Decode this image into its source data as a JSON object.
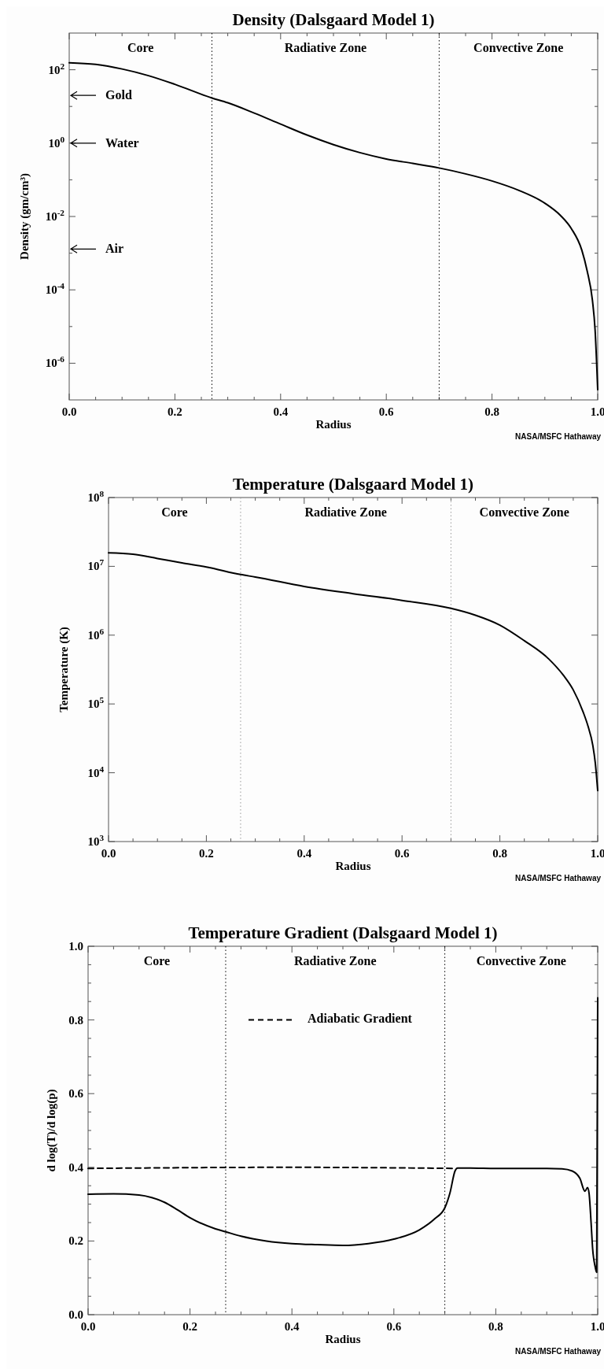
{
  "chart_data": [
    {
      "type": "line",
      "title": "Density (Dalsgaard Model 1)",
      "xlabel": "Radius",
      "ylabel": "Density (gm/cm³)",
      "log": "y",
      "xlim": [
        0,
        1
      ],
      "xticks": [
        {
          "value": 0,
          "label": "0.0"
        },
        {
          "value": 0.05,
          "label": null
        },
        {
          "value": 0.1,
          "label": null
        },
        {
          "value": 0.15,
          "label": null
        },
        {
          "value": 0.2,
          "label": "0.2"
        },
        {
          "value": 0.25,
          "label": null
        },
        {
          "value": 0.3,
          "label": null
        },
        {
          "value": 0.35,
          "label": null
        },
        {
          "value": 0.4,
          "label": "0.4"
        },
        {
          "value": 0.45,
          "label": null
        },
        {
          "value": 0.5,
          "label": null
        },
        {
          "value": 0.55,
          "label": null
        },
        {
          "value": 0.6,
          "label": "0.6"
        },
        {
          "value": 0.65,
          "label": null
        },
        {
          "value": 0.7,
          "label": null
        },
        {
          "value": 0.75,
          "label": null
        },
        {
          "value": 0.8,
          "label": "0.8"
        },
        {
          "value": 0.85,
          "label": null
        },
        {
          "value": 0.9,
          "label": null
        },
        {
          "value": 0.95,
          "label": null
        },
        {
          "value": 1,
          "label": "1.0"
        }
      ],
      "ylim": [
        1e-07,
        1000
      ],
      "yticks": [
        {
          "value": 1e-06,
          "label": "10$^{-6}$"
        },
        {
          "value": 1e-05,
          "label": null
        },
        {
          "value": 0.0001,
          "label": "10$^{-4}$"
        },
        {
          "value": 0.001,
          "label": null
        },
        {
          "value": 0.01,
          "label": "10$^{-2}$"
        },
        {
          "value": 0.1,
          "label": null
        },
        {
          "value": 1,
          "label": "10$^{0}$"
        },
        {
          "value": 10,
          "label": null
        },
        {
          "value": 100,
          "label": "10$^{2}$"
        }
      ],
      "series": [
        {
          "color": "#000000",
          "x": [
            0,
            0.05,
            0.1,
            0.15,
            0.2,
            0.27,
            0.3,
            0.35,
            0.4,
            0.45,
            0.5,
            0.55,
            0.6,
            0.65,
            0.7,
            0.75,
            0.8,
            0.85,
            0.9,
            0.93,
            0.95,
            0.97,
            0.98,
            0.99,
            0.995,
            1.0
          ],
          "values": [
            155,
            140,
            105,
            69,
            40,
            17,
            12.6,
            6.6,
            3.3,
            1.66,
            0.91,
            0.55,
            0.37,
            0.28,
            0.21,
            0.145,
            0.093,
            0.052,
            0.023,
            0.0105,
            0.0047,
            0.0012,
            0.00033,
            5.2e-05,
            8.3e-06,
            1.9e-07
          ]
        }
      ],
      "ref_lines": [
        {
          "axis": "x",
          "value": 0.27,
          "color": "#000000",
          "line_style": "dotted"
        },
        {
          "axis": "x",
          "value": 0.7,
          "color": "#000000",
          "line_style": "dotted"
        },
        {
          "axis": "y",
          "value": 20,
          "label": "Gold",
          "color": "#000000"
        },
        {
          "axis": "y",
          "value": 1,
          "label": "Water",
          "color": "#000000"
        },
        {
          "axis": "y",
          "value": 0.0013,
          "label": "Air",
          "color": "#000000"
        }
      ],
      "annotations": [
        "Core",
        "Radiative Zone",
        "Convective Zone",
        "NASA/MSFC Hathaway"
      ]
    },
    {
      "type": "line",
      "title": "Temperature (Dalsgaard Model 1)",
      "xlabel": "Radius",
      "ylabel": "Temperature (K)",
      "log": "y",
      "xlim": [
        0,
        1
      ],
      "xticks": [
        {
          "value": 0,
          "label": "0.0"
        },
        {
          "value": 0.05,
          "label": null
        },
        {
          "value": 0.1,
          "label": null
        },
        {
          "value": 0.15,
          "label": null
        },
        {
          "value": 0.2,
          "label": "0.2"
        },
        {
          "value": 0.25,
          "label": null
        },
        {
          "value": 0.3,
          "label": null
        },
        {
          "value": 0.35,
          "label": null
        },
        {
          "value": 0.4,
          "label": "0.4"
        },
        {
          "value": 0.45,
          "label": null
        },
        {
          "value": 0.5,
          "label": null
        },
        {
          "value": 0.55,
          "label": null
        },
        {
          "value": 0.6,
          "label": "0.6"
        },
        {
          "value": 0.65,
          "label": null
        },
        {
          "value": 0.7,
          "label": null
        },
        {
          "value": 0.75,
          "label": null
        },
        {
          "value": 0.8,
          "label": "0.8"
        },
        {
          "value": 0.85,
          "label": null
        },
        {
          "value": 0.9,
          "label": null
        },
        {
          "value": 0.95,
          "label": null
        },
        {
          "value": 1,
          "label": "1.0"
        }
      ],
      "ylim": [
        1000,
        100000000
      ],
      "yticks": [
        {
          "value": 1000,
          "label": "10$^{3}$"
        },
        {
          "value": 10000,
          "label": "10$^{4}$"
        },
        {
          "value": 100000,
          "label": "10$^{5}$"
        },
        {
          "value": 1000000,
          "label": "10$^{6}$"
        },
        {
          "value": 10000000,
          "label": "10$^{7}$"
        },
        {
          "value": 100000000,
          "label": "10$^{8}$"
        }
      ],
      "series": [
        {
          "color": "#000000",
          "x": [
            0,
            0.05,
            0.1,
            0.15,
            0.2,
            0.27,
            0.3,
            0.4,
            0.5,
            0.6,
            0.7,
            0.75,
            0.8,
            0.85,
            0.9,
            0.93,
            0.95,
            0.97,
            0.98,
            0.99,
            0.995,
            1.0
          ],
          "values": [
            15700000,
            15000000,
            13000000,
            11200000,
            9800000,
            7600000,
            7000000,
            5100000,
            4000000,
            3200000,
            2450000,
            1950000,
            1400000,
            830000,
            450000,
            260000,
            160000,
            77000,
            48000,
            25000,
            14000,
            5500
          ]
        }
      ],
      "ref_lines": [
        {
          "axis": "x",
          "value": 0.27,
          "color": "#999999",
          "line_style": "dotted"
        },
        {
          "axis": "x",
          "value": 0.7,
          "color": "#999999",
          "line_style": "dotted"
        }
      ],
      "annotations": [
        "Core",
        "Radiative Zone",
        "Convective Zone",
        "NASA/MSFC Hathaway"
      ]
    },
    {
      "type": "line",
      "title": "Temperature Gradient (Dalsgaard Model 1)",
      "xlabel": "Radius",
      "ylabel": "d log(T)/d log(p)",
      "legend": "top",
      "xlim": [
        0,
        1
      ],
      "xticks": [
        {
          "value": 0,
          "label": "0.0"
        },
        {
          "value": 0.05,
          "label": null
        },
        {
          "value": 0.1,
          "label": null
        },
        {
          "value": 0.15,
          "label": null
        },
        {
          "value": 0.2,
          "label": "0.2"
        },
        {
          "value": 0.25,
          "label": null
        },
        {
          "value": 0.3,
          "label": null
        },
        {
          "value": 0.35,
          "label": null
        },
        {
          "value": 0.4,
          "label": "0.4"
        },
        {
          "value": 0.45,
          "label": null
        },
        {
          "value": 0.5,
          "label": null
        },
        {
          "value": 0.55,
          "label": null
        },
        {
          "value": 0.6,
          "label": "0.6"
        },
        {
          "value": 0.65,
          "label": null
        },
        {
          "value": 0.7,
          "label": null
        },
        {
          "value": 0.75,
          "label": null
        },
        {
          "value": 0.8,
          "label": "0.8"
        },
        {
          "value": 0.85,
          "label": null
        },
        {
          "value": 0.9,
          "label": null
        },
        {
          "value": 0.95,
          "label": null
        },
        {
          "value": 1,
          "label": "1.0"
        }
      ],
      "ylim": [
        0,
        1
      ],
      "yticks": [
        {
          "value": 0,
          "label": "0.0"
        },
        {
          "value": 0.05,
          "label": null
        },
        {
          "value": 0.1,
          "label": null
        },
        {
          "value": 0.15,
          "label": null
        },
        {
          "value": 0.2,
          "label": "0.2"
        },
        {
          "value": 0.25,
          "label": null
        },
        {
          "value": 0.3,
          "label": null
        },
        {
          "value": 0.35,
          "label": null
        },
        {
          "value": 0.4,
          "label": "0.4"
        },
        {
          "value": 0.45,
          "label": null
        },
        {
          "value": 0.5,
          "label": null
        },
        {
          "value": 0.55,
          "label": null
        },
        {
          "value": 0.6,
          "label": "0.6"
        },
        {
          "value": 0.65,
          "label": null
        },
        {
          "value": 0.7,
          "label": null
        },
        {
          "value": 0.75,
          "label": null
        },
        {
          "value": 0.8,
          "label": "0.8"
        },
        {
          "value": 0.85,
          "label": null
        },
        {
          "value": 0.9,
          "label": null
        },
        {
          "value": 0.95,
          "label": null
        },
        {
          "value": 1,
          "label": "1.0"
        }
      ],
      "series": [
        {
          "color": "#000000",
          "x": [
            0,
            0.05,
            0.1,
            0.125,
            0.15,
            0.175,
            0.2,
            0.25,
            0.27,
            0.3,
            0.35,
            0.4,
            0.45,
            0.5,
            0.55,
            0.6,
            0.65,
            0.68,
            0.7,
            0.71,
            0.72,
            0.725,
            0.75,
            0.8,
            0.85,
            0.9,
            0.93,
            0.95,
            0.965,
            0.975,
            0.98,
            0.983,
            0.987,
            0.99,
            0.995,
            0.998,
            1.0
          ],
          "values": [
            0.327,
            0.328,
            0.325,
            0.318,
            0.305,
            0.285,
            0.263,
            0.233,
            0.225,
            0.213,
            0.2,
            0.193,
            0.19,
            0.188,
            0.193,
            0.205,
            0.23,
            0.26,
            0.29,
            0.33,
            0.39,
            0.398,
            0.398,
            0.397,
            0.397,
            0.397,
            0.396,
            0.39,
            0.37,
            0.335,
            0.345,
            0.33,
            0.25,
            0.18,
            0.13,
            0.115,
            0.86
          ]
        },
        {
          "name": "Adiabatic Gradient",
          "color": "#000000",
          "line_style": "dashed",
          "x": [
            0,
            0.4,
            0.72
          ],
          "values": [
            0.397,
            0.4,
            0.397
          ]
        }
      ],
      "ref_lines": [
        {
          "axis": "x",
          "value": 0.27,
          "color": "#000000",
          "line_style": "dotted"
        },
        {
          "axis": "x",
          "value": 0.7,
          "color": "#000000",
          "line_style": "dotted"
        }
      ],
      "annotations": [
        "Core",
        "Radiative Zone",
        "Convective Zone",
        "NASA/MSFC Hathaway"
      ]
    }
  ]
}
